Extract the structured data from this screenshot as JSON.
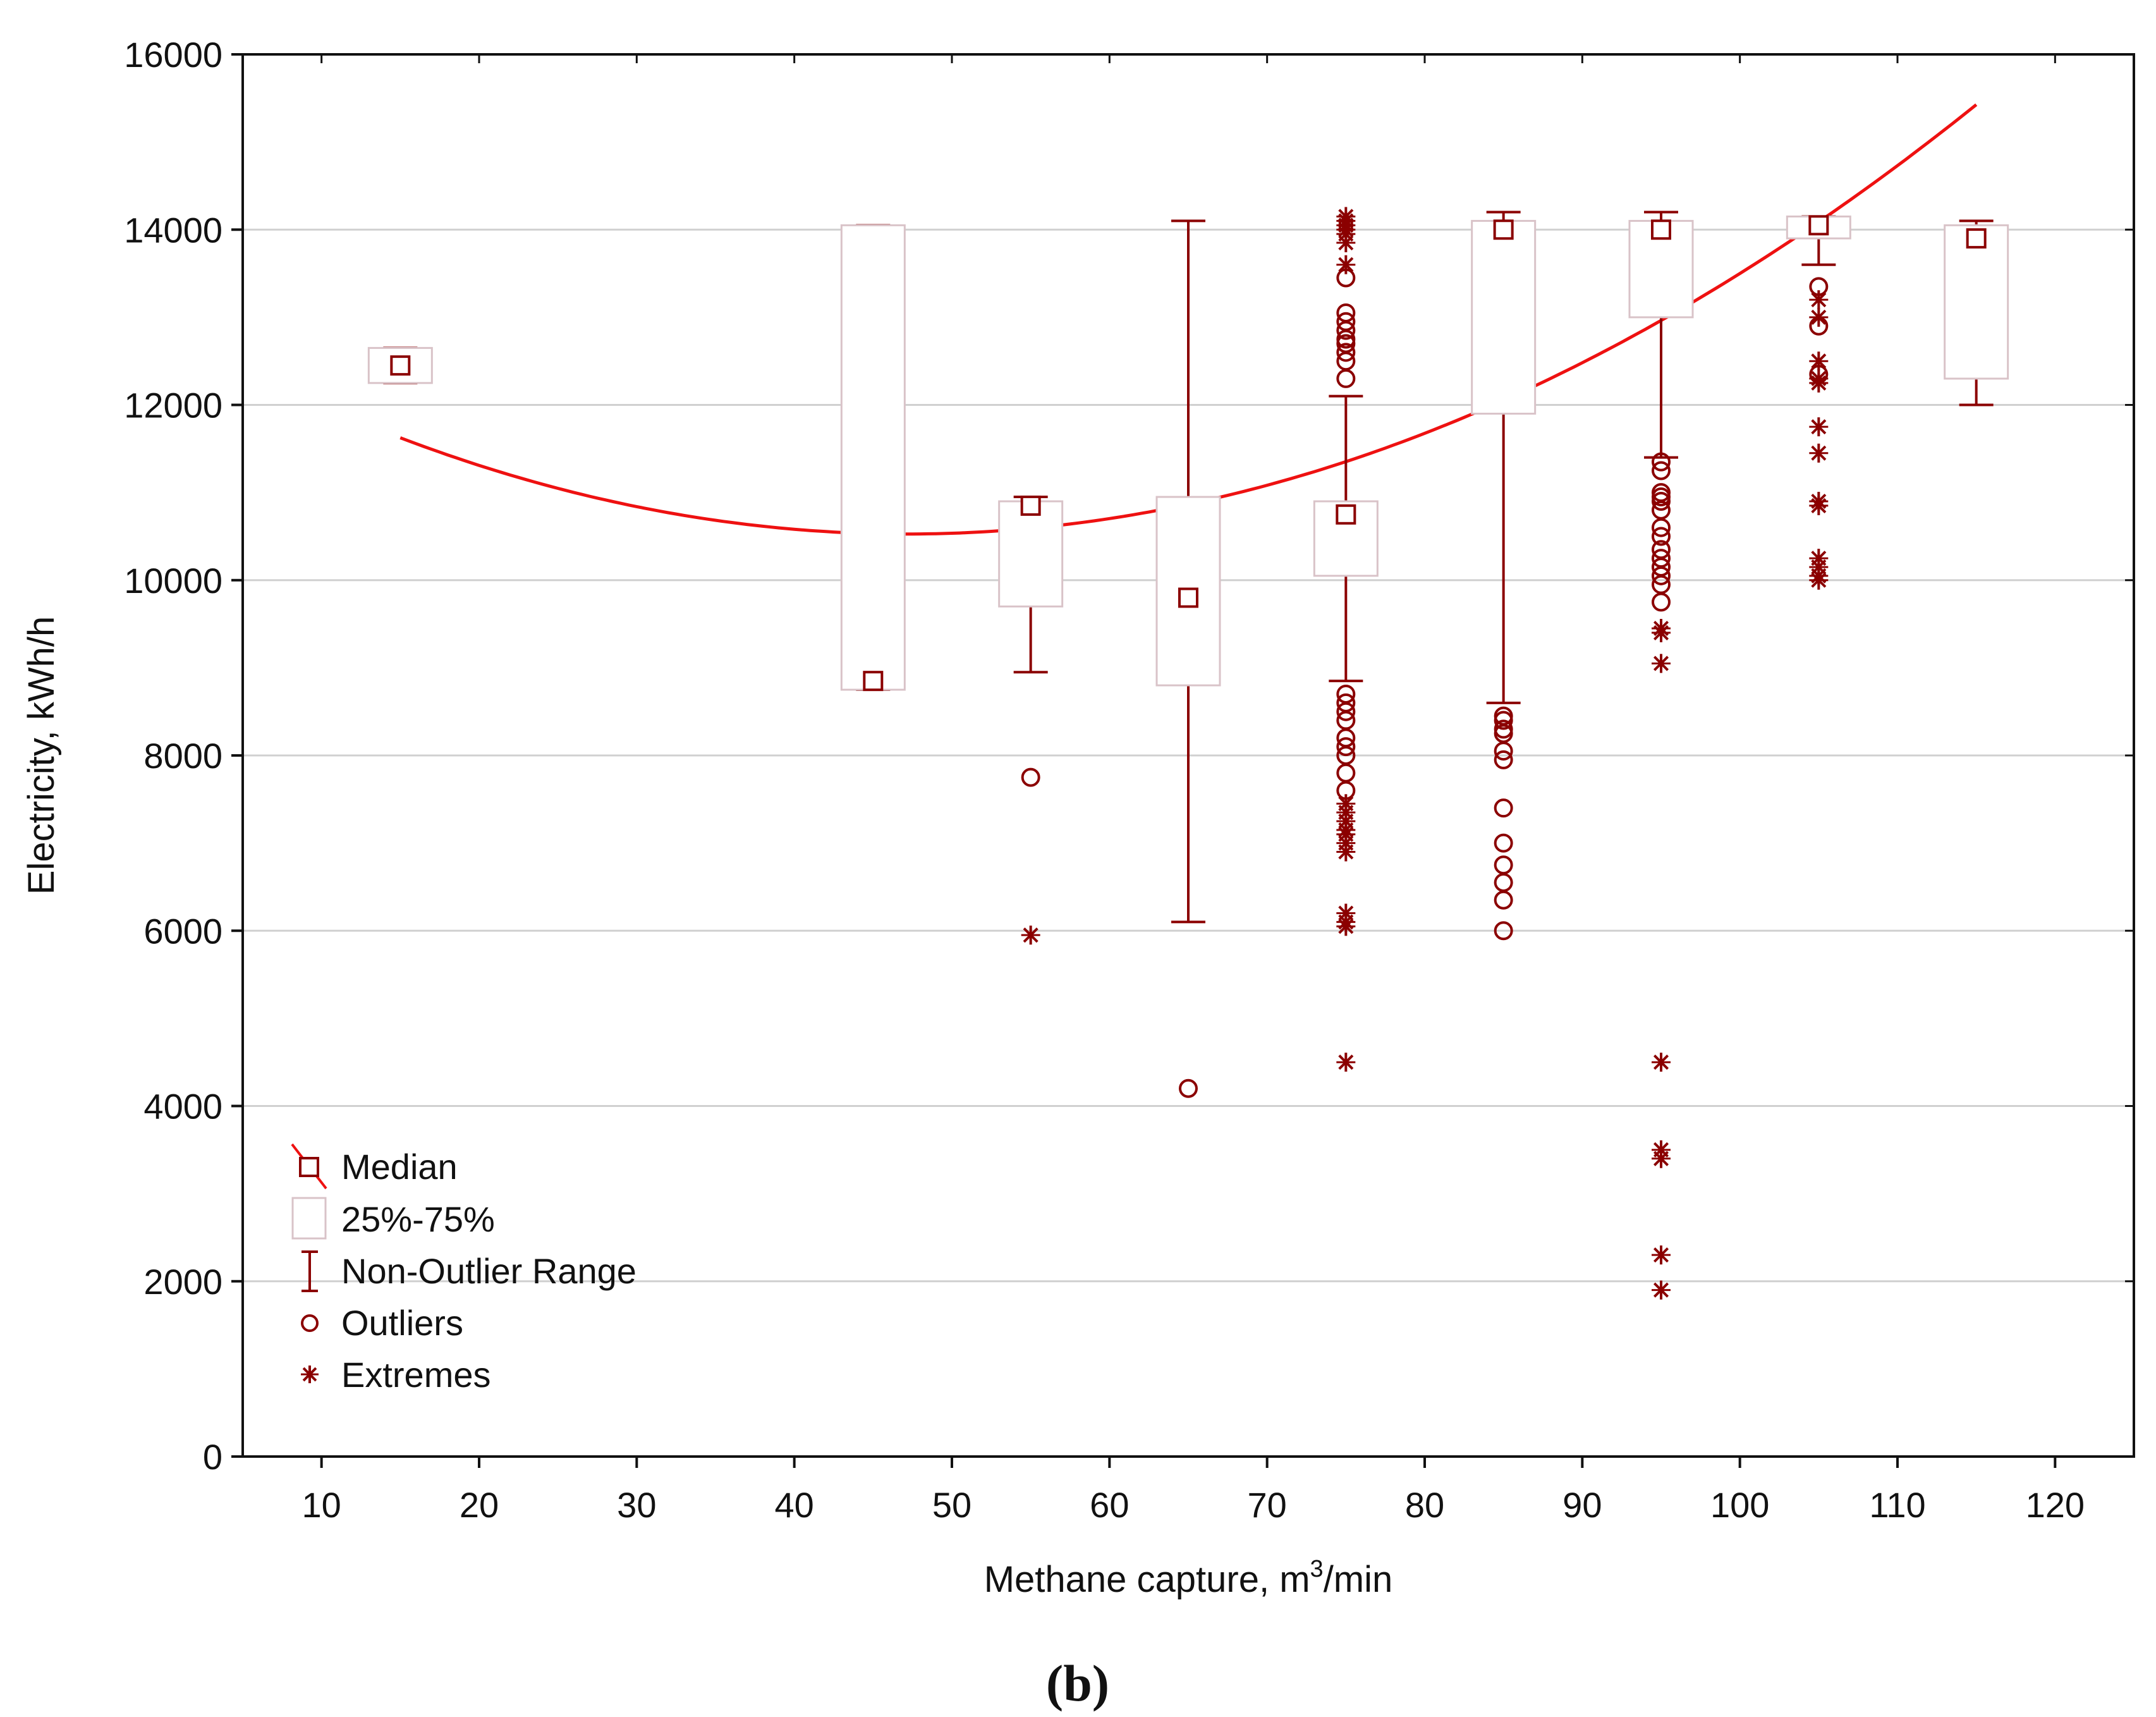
{
  "chart_data": {
    "type": "boxplot",
    "panel_label": "(b)",
    "xlabel_main": "Methane capture, m",
    "xlabel_sup": "3",
    "xlabel_tail": "/min",
    "ylabel": "Electricity, kWh/h",
    "xlim": [
      5,
      125
    ],
    "ylim": [
      0,
      16000
    ],
    "x_ticks": [
      10,
      20,
      30,
      40,
      50,
      60,
      70,
      80,
      90,
      100,
      110,
      120
    ],
    "y_ticks": [
      0,
      2000,
      4000,
      6000,
      8000,
      10000,
      12000,
      14000,
      16000
    ],
    "grid": "horizontal",
    "legend": {
      "placement": "bottom-left",
      "median": "Median",
      "box": "25%-75%",
      "whisker": "Non-Outlier Range",
      "outliers": "Outliers",
      "extremes": "Extremes"
    },
    "colors": {
      "marker": "#8b0000",
      "box": "#d9c3c8",
      "fit": "#ee1111",
      "grid": "#d0d0d0"
    },
    "boxes": [
      {
        "x": 15,
        "median": 12450,
        "q1": 12250,
        "q3": 12650,
        "whisker_low": 12250,
        "whisker_high": 12650,
        "outliers": [],
        "extremes": []
      },
      {
        "x": 45,
        "median": 8850,
        "q1": 8750,
        "q3": 14050,
        "whisker_low": 8750,
        "whisker_high": 14050,
        "outliers": [],
        "extremes": []
      },
      {
        "x": 55,
        "median": 10850,
        "q1": 9700,
        "q3": 10900,
        "whisker_low": 8950,
        "whisker_high": 10950,
        "outliers": [
          7750
        ],
        "extremes": [
          5950
        ]
      },
      {
        "x": 65,
        "median": 9800,
        "q1": 8800,
        "q3": 10950,
        "whisker_low": 6100,
        "whisker_high": 14100,
        "outliers": [
          4200
        ],
        "extremes": []
      },
      {
        "x": 75,
        "median": 10750,
        "q1": 10050,
        "q3": 10900,
        "whisker_low": 8850,
        "whisker_high": 12100,
        "outliers": [
          13450,
          13050,
          12950,
          12850,
          12750,
          12700,
          12600,
          12500,
          12300,
          8700,
          8600,
          8500,
          8400,
          8200,
          8100,
          8000,
          7800,
          7600
        ],
        "extremes": [
          14150,
          14100,
          14050,
          14000,
          13950,
          13850,
          13600,
          7450,
          7350,
          7250,
          7150,
          7100,
          7000,
          6900,
          6200,
          6100,
          6050,
          4500
        ]
      },
      {
        "x": 85,
        "median": 14000,
        "q1": 11900,
        "q3": 14100,
        "whisker_low": 8600,
        "whisker_high": 14200,
        "outliers": [
          8450,
          8400,
          8300,
          8250,
          8050,
          7950,
          7400,
          7000,
          6750,
          6550,
          6350,
          6000
        ],
        "extremes": []
      },
      {
        "x": 95,
        "median": 14000,
        "q1": 13000,
        "q3": 14100,
        "whisker_low": 11400,
        "whisker_high": 14200,
        "outliers": [
          11350,
          11250,
          11000,
          10950,
          10900,
          10800,
          10600,
          10500,
          10350,
          10250,
          10150,
          10050,
          9950,
          9750
        ],
        "extremes": [
          9450,
          9400,
          9050,
          4500,
          3500,
          3400,
          2300,
          1900
        ]
      },
      {
        "x": 105,
        "median": 14050,
        "q1": 13900,
        "q3": 14150,
        "whisker_low": 13600,
        "whisker_high": 14150,
        "outliers": [
          13350,
          12900,
          12350
        ],
        "extremes": [
          13200,
          13000,
          12500,
          12300,
          12250,
          11750,
          11450,
          10900,
          10850,
          10250,
          10150,
          10050,
          10000
        ]
      },
      {
        "x": 115,
        "median": 13900,
        "q1": 12300,
        "q3": 14050,
        "whisker_low": 12000,
        "whisker_high": 14100,
        "outliers": [],
        "extremes": []
      }
    ],
    "fit_curve": {
      "type": "quadratic",
      "x_range": [
        15,
        115
      ],
      "points": [
        [
          15,
          11650
        ],
        [
          48,
          10480
        ],
        [
          85,
          11950
        ],
        [
          100,
          13750
        ],
        [
          115,
          15300
        ]
      ]
    }
  }
}
